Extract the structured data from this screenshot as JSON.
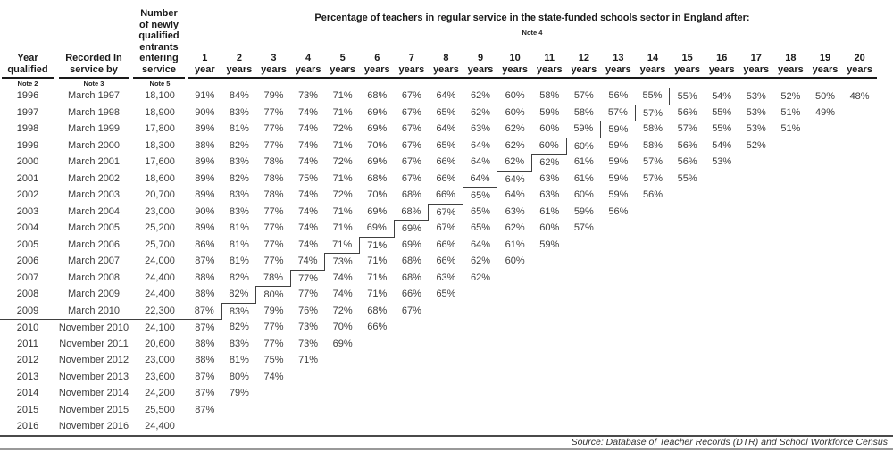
{
  "title": "Percentage of teachers in regular service in the state-funded schools sector in England after:",
  "title_note": "Note 4",
  "header": {
    "year_qualified": {
      "label": "Year\nqualified",
      "note": "Note 2"
    },
    "recorded": {
      "label": "Recorded In\nservice by",
      "note": "Note 3"
    },
    "entrants": {
      "label": "Number\nof newly\nqualified\nentrants\nentering\nservice",
      "note": "Note 5"
    }
  },
  "columns": {
    "years": [
      {
        "num": "1",
        "unit": "year"
      },
      {
        "num": "2",
        "unit": "years"
      },
      {
        "num": "3",
        "unit": "years"
      },
      {
        "num": "4",
        "unit": "years"
      },
      {
        "num": "5",
        "unit": "years"
      },
      {
        "num": "6",
        "unit": "years"
      },
      {
        "num": "7",
        "unit": "years"
      },
      {
        "num": "8",
        "unit": "years"
      },
      {
        "num": "9",
        "unit": "years"
      },
      {
        "num": "10",
        "unit": "years"
      },
      {
        "num": "11",
        "unit": "years"
      },
      {
        "num": "12",
        "unit": "years"
      },
      {
        "num": "13",
        "unit": "years"
      },
      {
        "num": "14",
        "unit": "years"
      },
      {
        "num": "15",
        "unit": "years"
      },
      {
        "num": "16",
        "unit": "years"
      },
      {
        "num": "17",
        "unit": "years"
      },
      {
        "num": "18",
        "unit": "years"
      },
      {
        "num": "19",
        "unit": "years"
      },
      {
        "num": "20",
        "unit": "years"
      }
    ]
  },
  "rows": [
    {
      "year": "1996",
      "recorded": "March 1997",
      "entrants": "18,100",
      "values": [
        "91%",
        "84%",
        "79%",
        "73%",
        "71%",
        "68%",
        "67%",
        "64%",
        "62%",
        "60%",
        "58%",
        "57%",
        "56%",
        "55%",
        "55%",
        "54%",
        "53%",
        "52%",
        "50%",
        "48%"
      ]
    },
    {
      "year": "1997",
      "recorded": "March 1998",
      "entrants": "18,900",
      "values": [
        "90%",
        "83%",
        "77%",
        "74%",
        "71%",
        "69%",
        "67%",
        "65%",
        "62%",
        "60%",
        "59%",
        "58%",
        "57%",
        "57%",
        "56%",
        "55%",
        "53%",
        "51%",
        "49%"
      ]
    },
    {
      "year": "1998",
      "recorded": "March 1999",
      "entrants": "17,800",
      "values": [
        "89%",
        "81%",
        "77%",
        "74%",
        "72%",
        "69%",
        "67%",
        "64%",
        "63%",
        "62%",
        "60%",
        "59%",
        "59%",
        "58%",
        "57%",
        "55%",
        "53%",
        "51%"
      ]
    },
    {
      "year": "1999",
      "recorded": "March 2000",
      "entrants": "18,300",
      "values": [
        "88%",
        "82%",
        "77%",
        "74%",
        "71%",
        "70%",
        "67%",
        "65%",
        "64%",
        "62%",
        "60%",
        "60%",
        "59%",
        "58%",
        "56%",
        "54%",
        "52%"
      ]
    },
    {
      "year": "2000",
      "recorded": "March 2001",
      "entrants": "17,600",
      "values": [
        "89%",
        "83%",
        "78%",
        "74%",
        "72%",
        "69%",
        "67%",
        "66%",
        "64%",
        "62%",
        "62%",
        "61%",
        "59%",
        "57%",
        "56%",
        "53%"
      ]
    },
    {
      "year": "2001",
      "recorded": "March 2002",
      "entrants": "18,600",
      "values": [
        "89%",
        "82%",
        "78%",
        "75%",
        "71%",
        "68%",
        "67%",
        "66%",
        "64%",
        "64%",
        "63%",
        "61%",
        "59%",
        "57%",
        "55%"
      ]
    },
    {
      "year": "2002",
      "recorded": "March 2003",
      "entrants": "20,700",
      "values": [
        "89%",
        "83%",
        "78%",
        "74%",
        "72%",
        "70%",
        "68%",
        "66%",
        "65%",
        "64%",
        "63%",
        "60%",
        "59%",
        "56%"
      ]
    },
    {
      "year": "2003",
      "recorded": "March 2004",
      "entrants": "23,000",
      "values": [
        "90%",
        "83%",
        "77%",
        "74%",
        "71%",
        "69%",
        "68%",
        "67%",
        "65%",
        "63%",
        "61%",
        "59%",
        "56%"
      ]
    },
    {
      "year": "2004",
      "recorded": "March 2005",
      "entrants": "25,200",
      "values": [
        "89%",
        "81%",
        "77%",
        "74%",
        "71%",
        "69%",
        "69%",
        "67%",
        "65%",
        "62%",
        "60%",
        "57%"
      ]
    },
    {
      "year": "2005",
      "recorded": "March 2006",
      "entrants": "25,700",
      "values": [
        "86%",
        "81%",
        "77%",
        "74%",
        "71%",
        "71%",
        "69%",
        "66%",
        "64%",
        "61%",
        "59%"
      ]
    },
    {
      "year": "2006",
      "recorded": "March 2007",
      "entrants": "24,000",
      "values": [
        "87%",
        "81%",
        "77%",
        "74%",
        "73%",
        "71%",
        "68%",
        "66%",
        "62%",
        "60%"
      ]
    },
    {
      "year": "2007",
      "recorded": "March 2008",
      "entrants": "24,400",
      "values": [
        "88%",
        "82%",
        "78%",
        "77%",
        "74%",
        "71%",
        "68%",
        "63%",
        "62%"
      ]
    },
    {
      "year": "2008",
      "recorded": "March 2009",
      "entrants": "24,400",
      "values": [
        "88%",
        "82%",
        "80%",
        "77%",
        "74%",
        "71%",
        "66%",
        "65%"
      ]
    },
    {
      "year": "2009",
      "recorded": "March 2010",
      "entrants": "22,300",
      "values": [
        "87%",
        "83%",
        "79%",
        "76%",
        "72%",
        "68%",
        "67%"
      ]
    },
    {
      "year": "2010",
      "recorded": "November 2010",
      "entrants": "24,100",
      "values": [
        "87%",
        "82%",
        "77%",
        "73%",
        "70%",
        "66%"
      ]
    },
    {
      "year": "2011",
      "recorded": "November 2011",
      "entrants": "20,600",
      "values": [
        "88%",
        "83%",
        "77%",
        "73%",
        "69%"
      ]
    },
    {
      "year": "2012",
      "recorded": "November 2012",
      "entrants": "23,000",
      "values": [
        "88%",
        "81%",
        "75%",
        "71%"
      ]
    },
    {
      "year": "2013",
      "recorded": "November 2013",
      "entrants": "23,600",
      "values": [
        "87%",
        "80%",
        "74%"
      ]
    },
    {
      "year": "2014",
      "recorded": "November 2014",
      "entrants": "24,200",
      "values": [
        "87%",
        "79%"
      ]
    },
    {
      "year": "2015",
      "recorded": "November 2015",
      "entrants": "25,500",
      "values": [
        "87%"
      ]
    },
    {
      "year": "2016",
      "recorded": "November 2016",
      "entrants": "24,400",
      "values": []
    }
  ],
  "source": "Source: Database of Teacher Records (DTR) and School Workforce Census",
  "colors": {
    "header_text": "#1a1a1a",
    "data_text": "#3d3d3d",
    "step_line": "#404040",
    "rule_thick": "#4a4a4a",
    "rule_thin": "#999999"
  }
}
